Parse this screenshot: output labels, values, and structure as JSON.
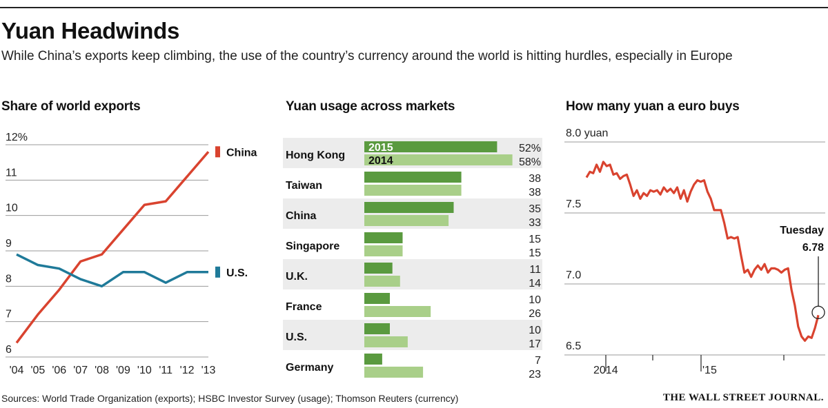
{
  "header": {
    "title": "Yuan Headwinds",
    "subtitle": "While China’s exports keep climbing, the use of the country’s currency around the world is hitting hurdles, especially in Europe"
  },
  "footer": {
    "sources": "Sources: World Trade Organization (exports); HSBC Investor Survey (usage); Thomson Reuters (currency)",
    "publisher": "THE WALL STREET JOURNAL."
  },
  "colors": {
    "china": "#d9432f",
    "us": "#1f7a99",
    "bar2015": "#5a9a3f",
    "bar2014": "#a9cf89",
    "band": "#ececec"
  },
  "chart_data": [
    {
      "type": "line",
      "title": "Share of world exports",
      "x": [
        "'04",
        "'05",
        "'06",
        "'07",
        "'08",
        "'09",
        "'10",
        "'11",
        "'12",
        "'13"
      ],
      "y_ticks": [
        "12%",
        "11",
        "10",
        "9",
        "8",
        "7",
        "6"
      ],
      "ylim": [
        6,
        12
      ],
      "grid": true,
      "series": [
        {
          "name": "China",
          "values": [
            6.4,
            7.2,
            7.9,
            8.7,
            8.9,
            9.6,
            10.3,
            10.4,
            11.1,
            11.8
          ]
        },
        {
          "name": "U.S.",
          "values": [
            8.9,
            8.6,
            8.5,
            8.2,
            8.0,
            8.4,
            8.4,
            8.1,
            8.4,
            8.4
          ]
        }
      ]
    },
    {
      "type": "bar",
      "orientation": "horizontal",
      "title": "Yuan usage across markets",
      "categories": [
        "Hong Kong",
        "Taiwan",
        "China",
        "Singapore",
        "U.K.",
        "France",
        "U.S.",
        "Germany"
      ],
      "series": [
        {
          "name": "2015",
          "values": [
            52,
            38,
            35,
            15,
            11,
            10,
            10,
            7
          ]
        },
        {
          "name": "2014",
          "values": [
            58,
            38,
            33,
            15,
            14,
            26,
            17,
            23
          ]
        }
      ],
      "value_labels_2015": [
        "52%",
        "38",
        "35",
        "15",
        "11",
        "10",
        "10",
        "7"
      ],
      "value_labels_2014": [
        "58%",
        "38",
        "33",
        "15",
        "14",
        "26",
        "17",
        "23"
      ],
      "legend": "inside-first-bars"
    },
    {
      "type": "line",
      "title": "How many yuan a euro buys",
      "y_ticks": [
        "8.0 yuan",
        "7.5",
        "7.0",
        "6.5"
      ],
      "ylim": [
        6.5,
        8.0
      ],
      "x_ticks": [
        "2014",
        "'15"
      ],
      "grid": true,
      "annotation": {
        "label": "Tuesday",
        "value": "6.78"
      },
      "series": [
        {
          "name": "",
          "values": [
            7.75,
            7.79,
            7.78,
            7.84,
            7.79,
            7.86,
            7.83,
            7.84,
            7.77,
            7.78,
            7.74,
            7.76,
            7.77,
            7.7,
            7.62,
            7.66,
            7.6,
            7.64,
            7.62,
            7.66,
            7.65,
            7.66,
            7.63,
            7.68,
            7.65,
            7.67,
            7.64,
            7.68,
            7.6,
            7.66,
            7.58,
            7.65,
            7.7,
            7.73,
            7.72,
            7.73,
            7.65,
            7.6,
            7.52,
            7.52,
            7.52,
            7.43,
            7.32,
            7.33,
            7.32,
            7.33,
            7.2,
            7.08,
            7.1,
            7.05,
            7.1,
            7.13,
            7.1,
            7.14,
            7.08,
            7.11,
            7.11,
            7.1,
            7.08,
            7.1,
            7.11,
            6.96,
            6.85,
            6.7,
            6.63,
            6.6,
            6.63,
            6.62,
            6.69,
            6.78
          ]
        }
      ]
    }
  ]
}
